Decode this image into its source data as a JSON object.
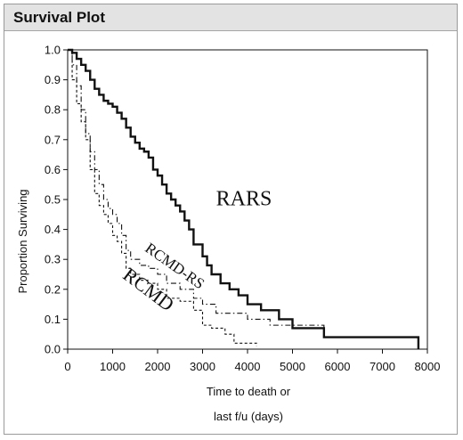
{
  "panel": {
    "title": "Survival Plot"
  },
  "chart_data": {
    "type": "line",
    "step": true,
    "xlabel_lines": [
      "Time to death or",
      "last f/u (days)"
    ],
    "ylabel": "Proportion Surviving",
    "xlim": [
      0,
      8000
    ],
    "ylim": [
      0,
      1
    ],
    "xticks": [
      0,
      1000,
      2000,
      3000,
      4000,
      5000,
      6000,
      7000,
      8000
    ],
    "yticks": [
      0.0,
      0.1,
      0.2,
      0.3,
      0.4,
      0.5,
      0.6,
      0.7,
      0.8,
      0.9,
      1.0
    ],
    "ytick_labels": [
      "0.0",
      "0.1",
      "0.2",
      "0.3",
      "0.4",
      "0.5",
      "0.6",
      "0.7",
      "0.8",
      "0.9",
      "1.0"
    ],
    "grid": false,
    "series": [
      {
        "name": "RARS",
        "style": "solid",
        "x": [
          0,
          100,
          200,
          300,
          400,
          500,
          600,
          700,
          800,
          900,
          1000,
          1100,
          1200,
          1300,
          1400,
          1500,
          1600,
          1700,
          1800,
          1900,
          2000,
          2100,
          2200,
          2300,
          2400,
          2500,
          2600,
          2700,
          2800,
          2900,
          3000,
          3100,
          3200,
          3400,
          3600,
          3800,
          4000,
          4300,
          4700,
          5000,
          5700,
          7800
        ],
        "y": [
          1.0,
          0.99,
          0.97,
          0.95,
          0.93,
          0.9,
          0.87,
          0.85,
          0.83,
          0.82,
          0.81,
          0.79,
          0.77,
          0.74,
          0.71,
          0.69,
          0.67,
          0.66,
          0.64,
          0.6,
          0.58,
          0.55,
          0.52,
          0.5,
          0.48,
          0.46,
          0.43,
          0.4,
          0.35,
          0.35,
          0.31,
          0.28,
          0.25,
          0.22,
          0.2,
          0.18,
          0.15,
          0.13,
          0.1,
          0.07,
          0.04,
          0.0
        ]
      },
      {
        "name": "RCMD-RS",
        "style": "dash-dot",
        "x": [
          0,
          100,
          200,
          300,
          400,
          500,
          600,
          700,
          800,
          900,
          1000,
          1100,
          1200,
          1300,
          1400,
          1600,
          1800,
          2000,
          2200,
          2500,
          2800,
          3000,
          3300,
          4000,
          4500,
          5700
        ],
        "y": [
          1.0,
          0.95,
          0.88,
          0.8,
          0.72,
          0.66,
          0.6,
          0.55,
          0.5,
          0.47,
          0.45,
          0.42,
          0.38,
          0.33,
          0.3,
          0.28,
          0.27,
          0.25,
          0.22,
          0.2,
          0.17,
          0.15,
          0.12,
          0.1,
          0.08,
          0.06
        ]
      },
      {
        "name": "RCMD",
        "style": "dashed",
        "x": [
          0,
          100,
          200,
          300,
          400,
          500,
          600,
          700,
          800,
          900,
          1000,
          1100,
          1200,
          1300,
          1400,
          1600,
          1800,
          2000,
          2200,
          2500,
          2800,
          3000,
          3200,
          3500,
          3700,
          4200
        ],
        "y": [
          1.0,
          0.9,
          0.82,
          0.76,
          0.7,
          0.6,
          0.52,
          0.48,
          0.45,
          0.42,
          0.38,
          0.36,
          0.32,
          0.27,
          0.25,
          0.23,
          0.22,
          0.2,
          0.17,
          0.16,
          0.13,
          0.08,
          0.07,
          0.05,
          0.02,
          0.01
        ]
      }
    ],
    "annotations": [
      {
        "text": "RARS",
        "x": 3300,
        "y": 0.48,
        "series": "RARS"
      },
      {
        "text": "RCMD-RS",
        "x": 1700,
        "y": 0.33,
        "series": "RCMD-RS"
      },
      {
        "text": "RCMD",
        "x": 1200,
        "y": 0.24,
        "series": "RCMD"
      }
    ]
  }
}
